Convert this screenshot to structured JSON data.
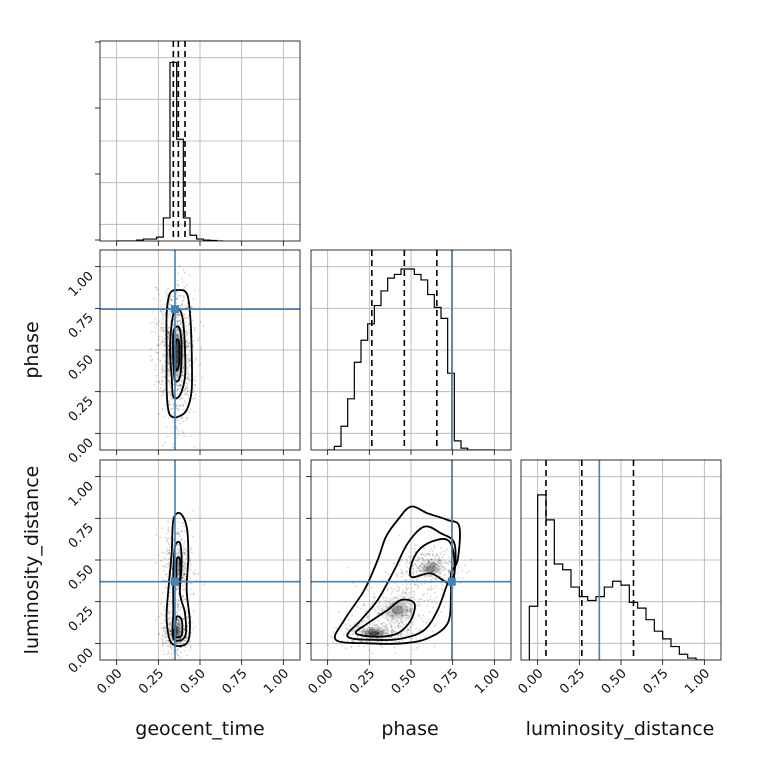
{
  "chart_data": {
    "type": "corner",
    "parameters": [
      "geocent_time",
      "phase",
      "luminosity_distance"
    ],
    "axis_range": [
      -0.1,
      1.1
    ],
    "tick_labels": [
      "0.00",
      "0.25",
      "0.50",
      "0.75",
      "1.00"
    ],
    "ticks": [
      0,
      0.25,
      0.5,
      0.75,
      1.0
    ],
    "grid": true,
    "truths": {
      "geocent_time": 0.35,
      "phase": 0.745,
      "luminosity_distance": 0.37
    },
    "quantiles": {
      "geocent_time": [
        0.34,
        0.37,
        0.41
      ],
      "phase": [
        0.265,
        0.46,
        0.655
      ],
      "luminosity_distance": [
        0.05,
        0.265,
        0.575
      ]
    },
    "histograms": {
      "geocent_time": {
        "bin_edges": [
          0.0,
          0.04,
          0.08,
          0.12,
          0.16,
          0.2,
          0.24,
          0.28,
          0.32,
          0.36,
          0.4,
          0.44,
          0.48,
          0.52,
          0.56,
          0.6,
          0.64
        ],
        "counts": [
          0,
          0,
          0,
          0.005,
          0.01,
          0.01,
          0.02,
          0.12,
          0.93,
          0.53,
          0.12,
          0.03,
          0.01,
          0.005,
          0.003,
          0
        ],
        "ylim": [
          0,
          1.0
        ]
      },
      "phase": {
        "bin_edges": [
          0.0,
          0.04,
          0.08,
          0.12,
          0.16,
          0.2,
          0.24,
          0.28,
          0.32,
          0.36,
          0.4,
          0.44,
          0.48,
          0.52,
          0.56,
          0.6,
          0.64,
          0.68,
          0.72,
          0.76,
          0.8,
          0.84,
          0.88,
          0.92,
          0.96,
          1.0
        ],
        "counts": [
          0,
          0.02,
          0.13,
          0.28,
          0.48,
          0.6,
          0.69,
          0.79,
          0.87,
          0.94,
          0.96,
          0.99,
          0.99,
          0.96,
          0.93,
          0.85,
          0.78,
          0.72,
          0.42,
          0.05,
          0.01,
          0,
          0,
          0,
          0
        ],
        "ylim": [
          0,
          1.05
        ]
      },
      "luminosity_distance": {
        "bin_edges": [
          -0.05,
          0.0,
          0.05,
          0.1,
          0.15,
          0.2,
          0.25,
          0.3,
          0.35,
          0.4,
          0.45,
          0.5,
          0.55,
          0.6,
          0.65,
          0.7,
          0.75,
          0.8,
          0.85,
          0.9,
          0.95,
          1.0
        ],
        "counts": [
          0.28,
          0.86,
          0.73,
          0.5,
          0.47,
          0.38,
          0.33,
          0.31,
          0.33,
          0.38,
          0.41,
          0.39,
          0.3,
          0.27,
          0.21,
          0.15,
          0.11,
          0.07,
          0.03,
          0.01,
          0
        ],
        "ylim": [
          0,
          1.0
        ]
      }
    },
    "pairs": [
      {
        "x": "geocent_time",
        "y": "phase"
      },
      {
        "x": "geocent_time",
        "y": "luminosity_distance"
      },
      {
        "x": "phase",
        "y": "luminosity_distance"
      }
    ],
    "contours": {
      "geocent_time|phase": [
        [
          [
            0.33,
            0.1
          ],
          [
            0.37,
            0.1
          ],
          [
            0.42,
            0.14
          ],
          [
            0.45,
            0.26
          ],
          [
            0.45,
            0.5
          ],
          [
            0.44,
            0.72
          ],
          [
            0.42,
            0.84
          ],
          [
            0.37,
            0.86
          ],
          [
            0.32,
            0.84
          ],
          [
            0.3,
            0.72
          ],
          [
            0.3,
            0.5
          ],
          [
            0.3,
            0.26
          ],
          [
            0.31,
            0.14
          ]
        ],
        [
          [
            0.34,
            0.22
          ],
          [
            0.38,
            0.23
          ],
          [
            0.41,
            0.34
          ],
          [
            0.41,
            0.5
          ],
          [
            0.4,
            0.66
          ],
          [
            0.38,
            0.74
          ],
          [
            0.35,
            0.74
          ],
          [
            0.33,
            0.66
          ],
          [
            0.32,
            0.5
          ],
          [
            0.33,
            0.34
          ]
        ],
        [
          [
            0.35,
            0.32
          ],
          [
            0.38,
            0.34
          ],
          [
            0.39,
            0.5
          ],
          [
            0.38,
            0.62
          ],
          [
            0.36,
            0.64
          ],
          [
            0.34,
            0.6
          ],
          [
            0.34,
            0.44
          ]
        ],
        [
          [
            0.355,
            0.38
          ],
          [
            0.375,
            0.42
          ],
          [
            0.375,
            0.54
          ],
          [
            0.36,
            0.56
          ],
          [
            0.35,
            0.5
          ]
        ]
      ],
      "geocent_time|luminosity_distance": [
        [
          [
            0.33,
            0.0
          ],
          [
            0.42,
            0.0
          ],
          [
            0.44,
            0.12
          ],
          [
            0.42,
            0.32
          ],
          [
            0.43,
            0.52
          ],
          [
            0.42,
            0.7
          ],
          [
            0.38,
            0.78
          ],
          [
            0.34,
            0.74
          ],
          [
            0.33,
            0.54
          ],
          [
            0.31,
            0.32
          ],
          [
            0.3,
            0.14
          ]
        ],
        [
          [
            0.34,
            0.03
          ],
          [
            0.41,
            0.04
          ],
          [
            0.41,
            0.18
          ],
          [
            0.38,
            0.3
          ],
          [
            0.39,
            0.48
          ],
          [
            0.38,
            0.6
          ],
          [
            0.35,
            0.58
          ],
          [
            0.34,
            0.42
          ],
          [
            0.34,
            0.2
          ]
        ],
        [
          [
            0.35,
            0.04
          ],
          [
            0.39,
            0.05
          ],
          [
            0.39,
            0.14
          ],
          [
            0.36,
            0.16
          ],
          [
            0.35,
            0.1
          ]
        ],
        [
          [
            0.36,
            0.36
          ],
          [
            0.38,
            0.38
          ],
          [
            0.38,
            0.5
          ],
          [
            0.36,
            0.5
          ]
        ]
      ],
      "phase|luminosity_distance": [
        [
          [
            0.05,
            0.02
          ],
          [
            0.25,
            0.0
          ],
          [
            0.45,
            0.0
          ],
          [
            0.6,
            0.03
          ],
          [
            0.72,
            0.12
          ],
          [
            0.74,
            0.3
          ],
          [
            0.74,
            0.42
          ],
          [
            0.78,
            0.5
          ],
          [
            0.79,
            0.7
          ],
          [
            0.72,
            0.74
          ],
          [
            0.6,
            0.78
          ],
          [
            0.5,
            0.82
          ],
          [
            0.42,
            0.74
          ],
          [
            0.35,
            0.64
          ],
          [
            0.3,
            0.5
          ],
          [
            0.22,
            0.32
          ],
          [
            0.1,
            0.14
          ]
        ],
        [
          [
            0.12,
            0.04
          ],
          [
            0.3,
            0.02
          ],
          [
            0.45,
            0.03
          ],
          [
            0.58,
            0.08
          ],
          [
            0.66,
            0.2
          ],
          [
            0.72,
            0.36
          ],
          [
            0.76,
            0.42
          ],
          [
            0.76,
            0.6
          ],
          [
            0.68,
            0.66
          ],
          [
            0.58,
            0.7
          ],
          [
            0.48,
            0.6
          ],
          [
            0.4,
            0.44
          ],
          [
            0.3,
            0.26
          ],
          [
            0.2,
            0.14
          ]
        ],
        [
          [
            0.17,
            0.06
          ],
          [
            0.3,
            0.04
          ],
          [
            0.42,
            0.06
          ],
          [
            0.5,
            0.14
          ],
          [
            0.52,
            0.24
          ],
          [
            0.44,
            0.26
          ],
          [
            0.36,
            0.2
          ],
          [
            0.24,
            0.12
          ]
        ],
        [
          [
            0.5,
            0.4
          ],
          [
            0.62,
            0.42
          ],
          [
            0.74,
            0.36
          ],
          [
            0.76,
            0.5
          ],
          [
            0.72,
            0.62
          ],
          [
            0.6,
            0.6
          ],
          [
            0.52,
            0.52
          ]
        ]
      ]
    },
    "density_peaks": {
      "geocent_time|phase": [
        [
          0.36,
          0.48,
          0.05,
          0.18,
          1.0
        ]
      ],
      "geocent_time|luminosity_distance": [
        [
          0.36,
          0.07,
          0.035,
          0.06,
          1.0
        ],
        [
          0.37,
          0.45,
          0.04,
          0.12,
          0.5
        ]
      ],
      "phase|luminosity_distance": [
        [
          0.28,
          0.06,
          0.09,
          0.04,
          1.0
        ],
        [
          0.42,
          0.2,
          0.1,
          0.08,
          0.5
        ],
        [
          0.62,
          0.45,
          0.08,
          0.06,
          0.55
        ]
      ]
    }
  }
}
